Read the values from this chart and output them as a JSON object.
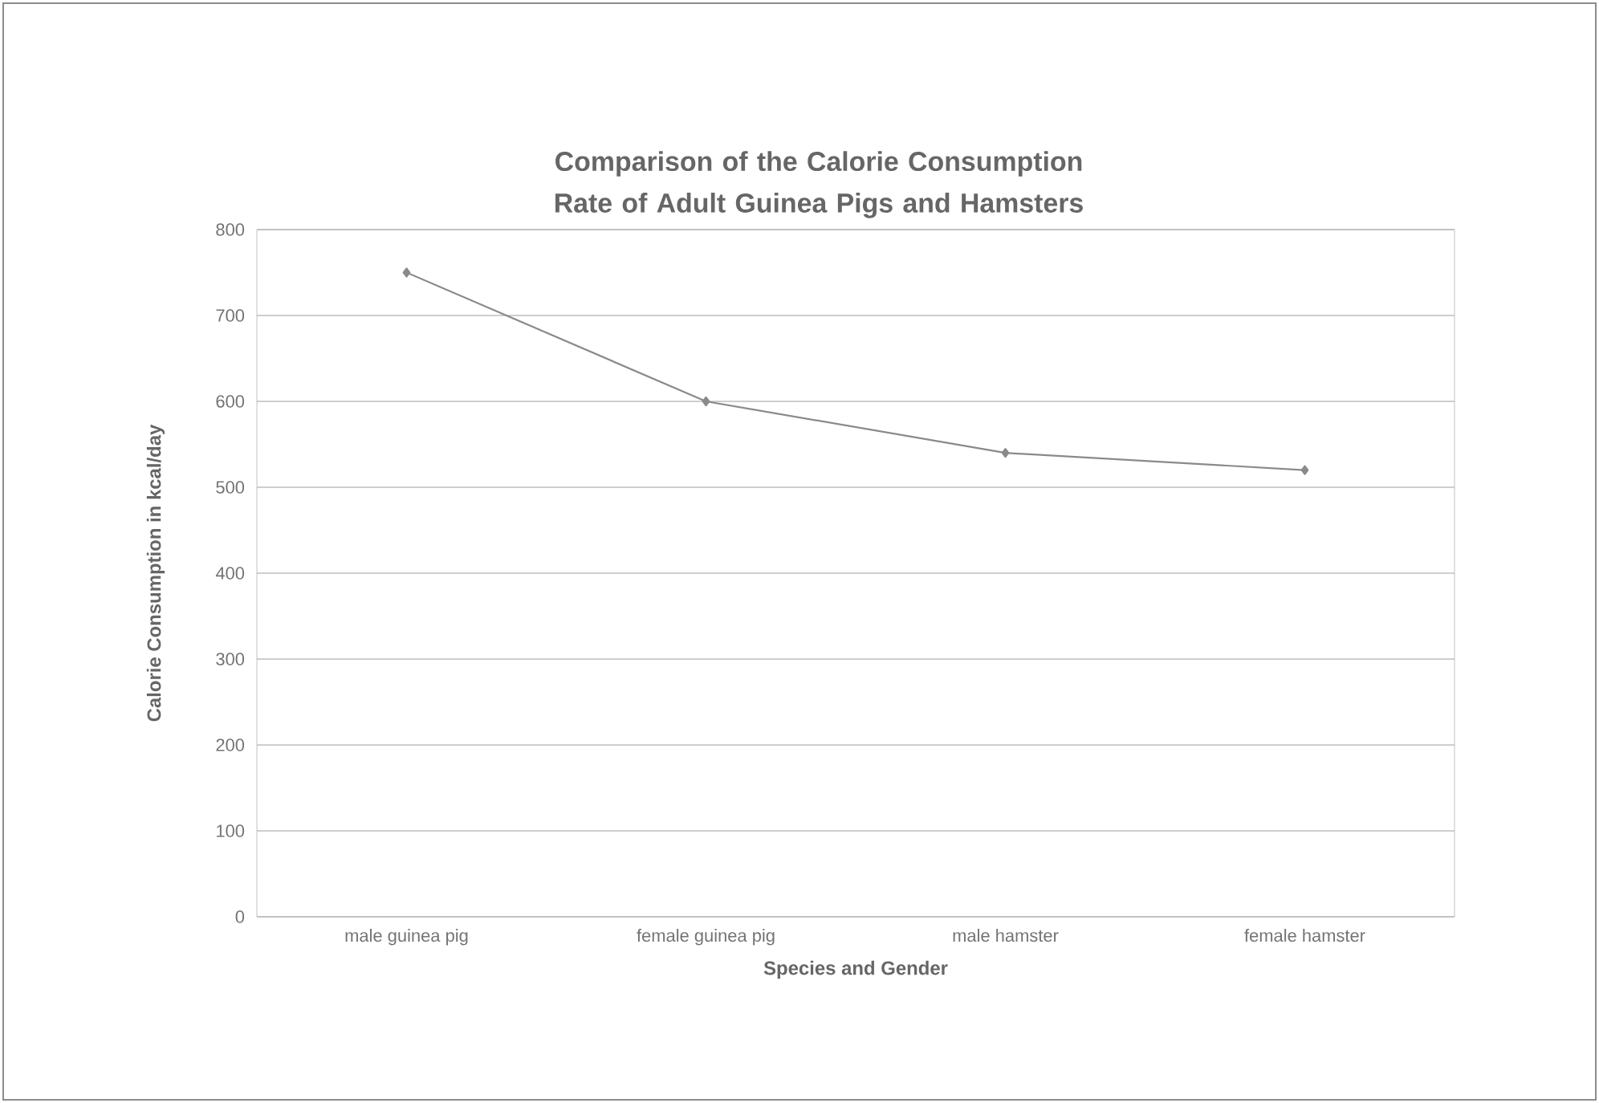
{
  "chart_data": {
    "type": "line",
    "title": "Comparison of the Calorie Consumption Rate of Adult Guinea Pigs and Hamsters",
    "xlabel": "Species and Gender",
    "ylabel": "Calorie Consumption in kcal/day",
    "categories": [
      "male guinea pig",
      "female guinea pig",
      "male hamster",
      "female hamster"
    ],
    "series": [
      {
        "color": "#8a8a8a",
        "values": [
          750,
          600,
          540,
          520
        ]
      }
    ],
    "ylim": [
      0,
      800
    ],
    "yticks": [
      0,
      100,
      200,
      300,
      400,
      500,
      600,
      700,
      800
    ],
    "grid": "y",
    "marker": "diamond",
    "line_style": "solid"
  }
}
